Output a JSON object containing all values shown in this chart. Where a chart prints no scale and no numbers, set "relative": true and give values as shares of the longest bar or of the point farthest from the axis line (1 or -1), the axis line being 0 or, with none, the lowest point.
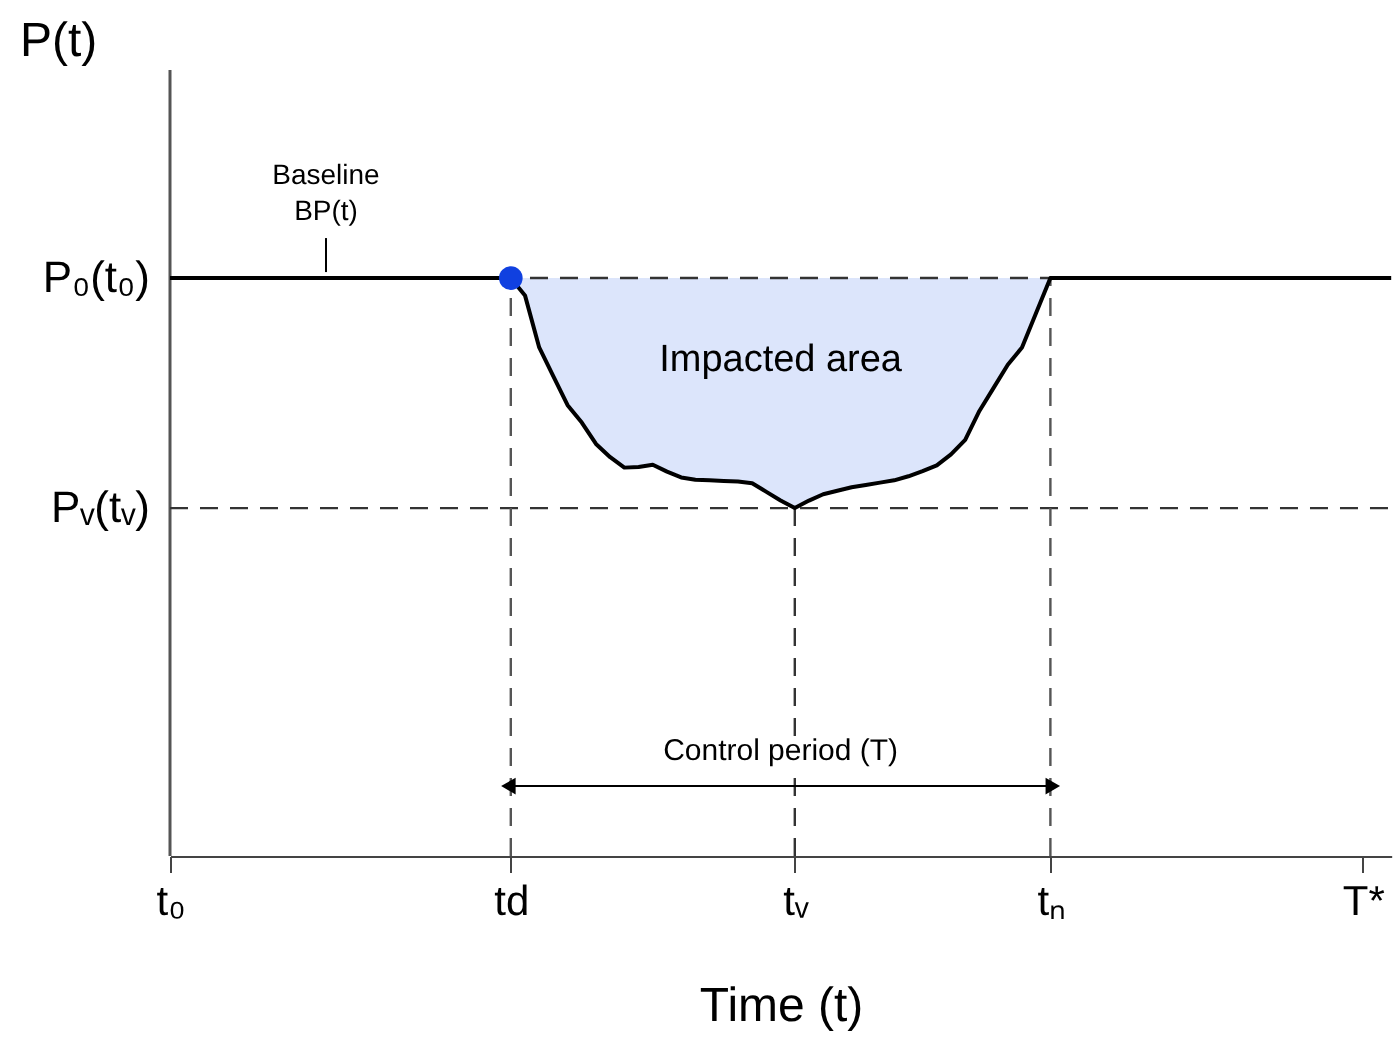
{
  "chart_data": {
    "type": "line",
    "relative": true,
    "xlabel": "Time (t)",
    "ylabel": "P(t)",
    "categories": [
      "t₀",
      null,
      null,
      null,
      null,
      null,
      null,
      null,
      null,
      null,
      null,
      null,
      null,
      null,
      null,
      null,
      null,
      null,
      null,
      null,
      null,
      null,
      null,
      null,
      "td",
      null,
      null,
      null,
      null,
      null,
      null,
      null,
      null,
      null,
      null,
      null,
      null,
      null,
      null,
      null,
      null,
      null,
      null,
      null,
      "tᵥ",
      null,
      null,
      null,
      null,
      null,
      null,
      null,
      null,
      null,
      null,
      null,
      null,
      null,
      null,
      null,
      null,
      null,
      "tₙ",
      null,
      null,
      null,
      null,
      null,
      null,
      null,
      null,
      null,
      null,
      null,
      null,
      null,
      null,
      null,
      null,
      null,
      null,
      null,
      null,
      null,
      "T*",
      null,
      null
    ],
    "series": [
      {
        "color": "#000000",
        "values": [
          1,
          1,
          1,
          1,
          1,
          1,
          1,
          1,
          1,
          1,
          1,
          1,
          1,
          1,
          1,
          1,
          1,
          1,
          1,
          1,
          1,
          1,
          1,
          1,
          1,
          0.97,
          0.88,
          0.83,
          0.78,
          0.75,
          0.713,
          0.69,
          0.672,
          0.673,
          0.677,
          0.665,
          0.655,
          0.651,
          0.65,
          0.649,
          0.648,
          0.645,
          0.63,
          0.615,
          0.602,
          0.615,
          0.626,
          0.632,
          0.638,
          0.642,
          0.646,
          0.65,
          0.657,
          0.666,
          0.676,
          0.695,
          0.72,
          0.77,
          0.81,
          0.85,
          0.88,
          0.94,
          1,
          1,
          1,
          1,
          1,
          1,
          1,
          1,
          1,
          1,
          1,
          1,
          1,
          1,
          1,
          1,
          1,
          1,
          1,
          1,
          1,
          1,
          1,
          1,
          1
        ],
        "lower": [
          null,
          null,
          null,
          null,
          null,
          null,
          null,
          null,
          null,
          null,
          null,
          null,
          null,
          null,
          null,
          null,
          null,
          null,
          null,
          null,
          null,
          null,
          null,
          null,
          1,
          0.97,
          0.88,
          0.83,
          0.78,
          0.75,
          0.713,
          0.69,
          0.672,
          0.673,
          0.677,
          0.665,
          0.655,
          0.651,
          0.65,
          0.649,
          0.648,
          0.645,
          0.63,
          0.615,
          0.602,
          0.615,
          0.626,
          0.632,
          0.638,
          0.642,
          0.646,
          0.65,
          0.657,
          0.666,
          0.676,
          0.695,
          0.72,
          0.77,
          0.81,
          0.85,
          0.88,
          0.94,
          1,
          null,
          null,
          null,
          null,
          null,
          null,
          null,
          null,
          null,
          null,
          null,
          null,
          null,
          null,
          null,
          null,
          null,
          null,
          null,
          null,
          null,
          null,
          null,
          null
        ],
        "upper": [
          null,
          null,
          null,
          null,
          null,
          null,
          null,
          null,
          null,
          null,
          null,
          null,
          null,
          null,
          null,
          null,
          null,
          null,
          null,
          null,
          null,
          null,
          null,
          null,
          1,
          1,
          1,
          1,
          1,
          1,
          1,
          1,
          1,
          1,
          1,
          1,
          1,
          1,
          1,
          1,
          1,
          1,
          1,
          1,
          1,
          1,
          1,
          1,
          1,
          1,
          1,
          1,
          1,
          1,
          1,
          1,
          1,
          1,
          1,
          1,
          1,
          1,
          1,
          null,
          null,
          null,
          null,
          null,
          null,
          null,
          null,
          null,
          null,
          null,
          null,
          null,
          null,
          null,
          null,
          null,
          null,
          null,
          null,
          null,
          null,
          null,
          null
        ]
      },
      {
        "type": "scatter",
        "color": "#1040e0",
        "values": [
          null,
          null,
          null,
          null,
          null,
          null,
          null,
          null,
          null,
          null,
          null,
          null,
          null,
          null,
          null,
          null,
          null,
          null,
          null,
          null,
          null,
          null,
          null,
          null,
          1,
          null,
          null,
          null,
          null,
          null,
          null,
          null,
          null,
          null,
          null,
          null,
          null,
          null,
          null,
          null,
          null,
          null,
          null,
          null,
          null,
          null,
          null,
          null,
          null,
          null,
          null,
          null,
          null,
          null,
          null,
          null,
          null,
          null,
          null,
          null,
          null,
          null,
          null,
          null,
          null,
          null,
          null,
          null,
          null,
          null,
          null,
          null,
          null,
          null,
          null,
          null,
          null,
          null,
          null,
          null,
          null,
          null,
          null,
          null,
          null,
          null,
          null
        ]
      }
    ],
    "ref_lines": [
      {
        "axis": "y",
        "value": 1,
        "label": "P₀(t₀)",
        "line_style": "dashed",
        "color": "#333333"
      },
      {
        "axis": "y",
        "value": 0.602,
        "label": "Pᵥ(tᵥ)",
        "line_style": "dashed",
        "color": "#333333"
      },
      {
        "axis": "x",
        "value": "td",
        "line_style": "dashed",
        "color": "#555555"
      },
      {
        "axis": "x",
        "value": "tᵥ",
        "line_style": "dashed",
        "color": "#333333"
      },
      {
        "axis": "x",
        "value": "tₙ",
        "line_style": "dashed",
        "color": "#555555"
      }
    ],
    "annotations": [
      "Baseline\nBP(t)",
      "Impacted area",
      "Control period (T)"
    ],
    "grid": false
  }
}
